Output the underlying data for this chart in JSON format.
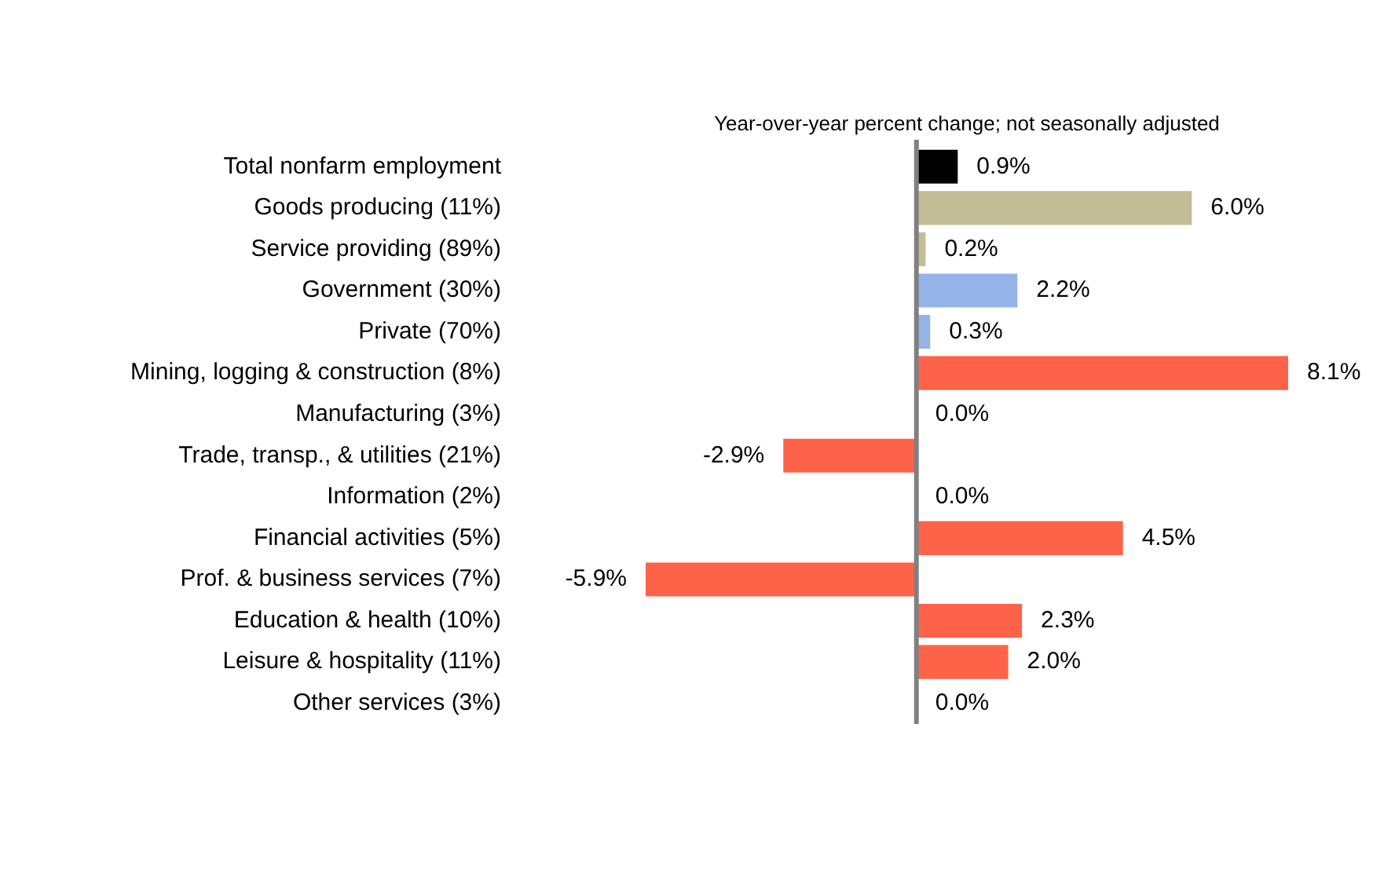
{
  "chart_data": {
    "type": "bar",
    "orientation": "horizontal",
    "title": "Year-over-year percent change; not seasonally adjusted",
    "categories": [
      "Total nonfarm employment",
      "Goods producing (11%)",
      "Service providing (89%)",
      "Government (30%)",
      "Private (70%)",
      "Mining, logging & construction (8%)",
      "Manufacturing (3%)",
      "Trade, transp., & utilities (21%)",
      "Information (2%)",
      "Financial activities (5%)",
      "Prof. & business services (7%)",
      "Education & health (10%)",
      "Leisure & hospitality (11%)",
      "Other services (3%)"
    ],
    "values": [
      0.9,
      6.0,
      0.2,
      2.2,
      0.3,
      8.1,
      0.0,
      -2.9,
      0.0,
      4.5,
      -5.9,
      2.3,
      2.0,
      0.0
    ],
    "value_labels": [
      "0.9%",
      "6.0%",
      "0.2%",
      "2.2%",
      "0.3%",
      "8.1%",
      "0.0%",
      "-2.9%",
      "0.0%",
      "4.5%",
      "-5.9%",
      "2.3%",
      "2.0%",
      "0.0%"
    ],
    "colors": [
      "#000000",
      "#c4bd97",
      "#c4bd97",
      "#95b3e7",
      "#95b3e7",
      "#fe634a",
      "#fe634a",
      "#fe634a",
      "#fe634a",
      "#fe634a",
      "#fe634a",
      "#fe634a",
      "#fe634a",
      "#fe634a"
    ],
    "grid": false,
    "legend": false,
    "tick_labels": "y"
  }
}
